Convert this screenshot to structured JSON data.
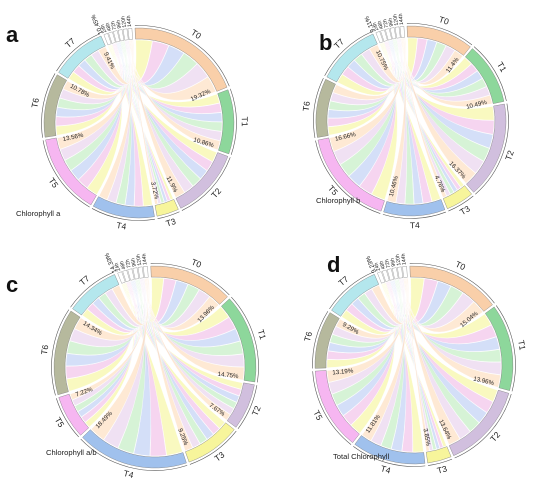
{
  "colors": {
    "T0": "#f8c79a",
    "T1": "#79d08a",
    "T2": "#c9b4d8",
    "T3": "#f6f38a",
    "T4": "#8fb6ea",
    "T5": "#f5a9ee",
    "T6": "#a9ad8c",
    "T7": "#a7e3ea",
    "time_palette": [
      "#f7f7a8",
      "#f2c5ea",
      "#c3d3f5",
      "#c6eec6",
      "#ead6ee",
      "#fde0c3",
      "#d8e8ea"
    ]
  },
  "chart_data": [
    {
      "panel": "a",
      "type": "chord",
      "caption": "Chlorophyll a",
      "groups": [
        {
          "name": "T0",
          "pct_label": "19.32%",
          "value": 19.32
        },
        {
          "name": "T1",
          "pct_label": "10.86%",
          "value": 10.86
        },
        {
          "name": "T2",
          "pct_label": "11.9%",
          "value": 11.9
        },
        {
          "name": "T3",
          "pct_label": "3.72%",
          "value": 3.72
        },
        {
          "name": "T4",
          "pct_label": "",
          "value": 10.5
        },
        {
          "name": "T5",
          "pct_label": "13.56%",
          "value": 13.56
        },
        {
          "name": "T6",
          "pct_label": "10.78%",
          "value": 10.78
        },
        {
          "name": "T7",
          "pct_label": "9.41%",
          "value": 9.41
        }
      ],
      "time_group": {
        "pct_label": "10.45%",
        "value": 10.45,
        "labels": [
          "24h",
          "48h",
          "72h",
          "96h",
          "120h",
          "144h"
        ]
      }
    },
    {
      "panel": "b",
      "type": "chord",
      "caption": "Chlorophyll b",
      "groups": [
        {
          "name": "T0",
          "pct_label": "11.4%",
          "value": 11.4
        },
        {
          "name": "T1",
          "pct_label": "10.49%",
          "value": 10.49
        },
        {
          "name": "T2",
          "pct_label": "16.37%",
          "value": 16.37
        },
        {
          "name": "T3",
          "pct_label": "4.76%",
          "value": 4.76
        },
        {
          "name": "T4",
          "pct_label": "10.46%",
          "value": 10.46
        },
        {
          "name": "T5",
          "pct_label": "16.66%",
          "value": 16.66
        },
        {
          "name": "T6",
          "pct_label": "",
          "value": 10.0
        },
        {
          "name": "T7",
          "pct_label": "10.75%",
          "value": 10.75
        }
      ],
      "time_group": {
        "pct_label": "9.11%",
        "value": 9.11,
        "labels": [
          "24h",
          "48h",
          "72h",
          "96h",
          "120h",
          "144h"
        ]
      }
    },
    {
      "panel": "c",
      "type": "chord",
      "caption": "Chlorophyll a/b",
      "groups": [
        {
          "name": "T0",
          "pct_label": "13.96%",
          "value": 13.96
        },
        {
          "name": "T1",
          "pct_label": "14.75%",
          "value": 14.75
        },
        {
          "name": "T2",
          "pct_label": "7.67%",
          "value": 7.67
        },
        {
          "name": "T3",
          "pct_label": "9.25%",
          "value": 9.25
        },
        {
          "name": "T4",
          "pct_label": "18.49%",
          "value": 18.49
        },
        {
          "name": "T5",
          "pct_label": "7.22%",
          "value": 7.22
        },
        {
          "name": "T6",
          "pct_label": "14.34%",
          "value": 14.34
        },
        {
          "name": "T7",
          "pct_label": "",
          "value": 9.0
        }
      ],
      "time_group": {
        "pct_label": "14.33%",
        "value": 14.33,
        "labels": [
          "24h",
          "48h",
          "72h",
          "96h",
          "120h",
          "144h"
        ]
      }
    },
    {
      "panel": "d",
      "type": "chord",
      "caption": "Total Chlorophyll",
      "groups": [
        {
          "name": "T0",
          "pct_label": "15.04%",
          "value": 15.04
        },
        {
          "name": "T1",
          "pct_label": "13.96%",
          "value": 13.96
        },
        {
          "name": "T2",
          "pct_label": "13.64%",
          "value": 13.64
        },
        {
          "name": "T3",
          "pct_label": "3.85%",
          "value": 3.85
        },
        {
          "name": "T4",
          "pct_label": "11.81%",
          "value": 11.81
        },
        {
          "name": "T5",
          "pct_label": "13.19%",
          "value": 13.19
        },
        {
          "name": "T6",
          "pct_label": "9.29%",
          "value": 9.29
        },
        {
          "name": "T7",
          "pct_label": "",
          "value": 9.0
        }
      ],
      "time_group": {
        "pct_label": "9.23%",
        "value": 9.23,
        "labels": [
          "24h",
          "48h",
          "72h",
          "96h",
          "120h",
          "144h"
        ]
      }
    }
  ]
}
